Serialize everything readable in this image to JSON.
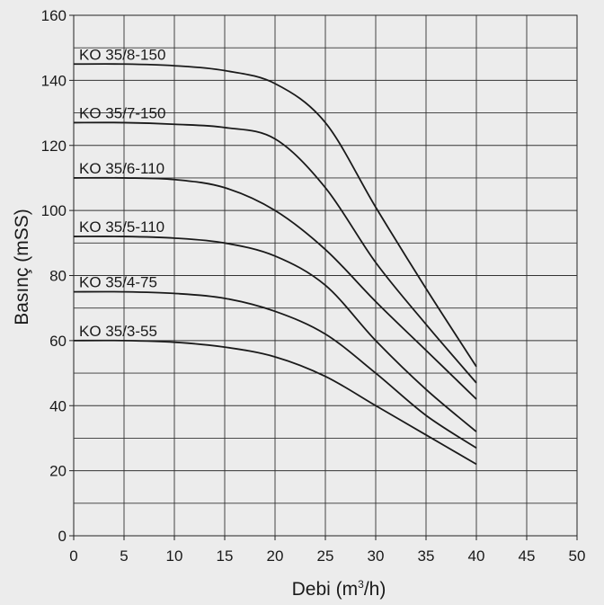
{
  "chart_data": {
    "type": "line",
    "title": "",
    "xlabel_parts": [
      "Debi (m",
      "3",
      "/h)"
    ],
    "ylabel": "Basınç (mSS)",
    "xlim": [
      0,
      50
    ],
    "ylim": [
      0,
      160
    ],
    "x_ticks": [
      "0",
      "5",
      "10",
      "15",
      "20",
      "25",
      "30",
      "35",
      "40",
      "45",
      "50"
    ],
    "y_ticks": [
      "0",
      "20",
      "40",
      "60",
      "80",
      "100",
      "120",
      "140",
      "160"
    ],
    "grid": true,
    "background": "#ececec",
    "line_color": "#1a1a1a",
    "series": [
      {
        "name": "KO 35/8-150",
        "x": [
          0,
          5,
          10,
          15,
          20,
          25,
          30,
          35,
          40
        ],
        "y": [
          145,
          145,
          144.5,
          143,
          139,
          127,
          101,
          76,
          52
        ]
      },
      {
        "name": "KO 35/7-150",
        "x": [
          0,
          5,
          10,
          15,
          20,
          25,
          30,
          35,
          40
        ],
        "y": [
          127,
          127,
          126.5,
          125.5,
          122,
          107,
          84,
          65,
          47
        ]
      },
      {
        "name": "KO 35/6-110",
        "x": [
          0,
          5,
          10,
          15,
          20,
          25,
          30,
          35,
          40
        ],
        "y": [
          110,
          110,
          109.5,
          107,
          100,
          88,
          72,
          57,
          42
        ]
      },
      {
        "name": "KO 35/5-110",
        "x": [
          0,
          5,
          10,
          15,
          20,
          25,
          30,
          35,
          40
        ],
        "y": [
          92,
          92,
          91.5,
          90,
          86,
          77,
          60,
          45,
          32
        ]
      },
      {
        "name": "KO 35/4-75",
        "x": [
          0,
          5,
          10,
          15,
          20,
          25,
          30,
          35,
          40
        ],
        "y": [
          75,
          75,
          74.5,
          73,
          69,
          62,
          50,
          37,
          27
        ]
      },
      {
        "name": "KO 35/3-55",
        "x": [
          0,
          5,
          10,
          15,
          20,
          25,
          30,
          35,
          40
        ],
        "y": [
          60,
          60,
          59.5,
          58,
          55,
          49,
          40,
          31,
          22
        ]
      }
    ]
  }
}
